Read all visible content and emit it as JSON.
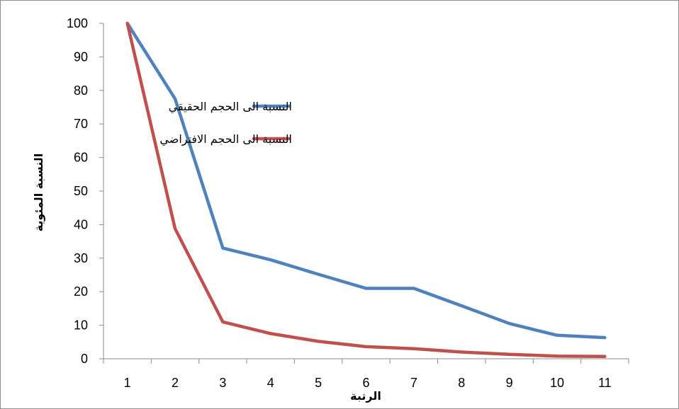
{
  "chart_data": {
    "type": "line",
    "x": [
      1,
      2,
      3,
      4,
      5,
      6,
      7,
      8,
      9,
      10,
      11
    ],
    "series": [
      {
        "name": "النسبة الى الحجم الحقيقي",
        "color": "#4f81bd",
        "values": [
          100,
          77.5,
          33,
          29.5,
          25.2,
          21,
          21,
          15.8,
          10.5,
          7,
          6.3
        ]
      },
      {
        "name": "النسبة الى الحجم الافتراضي",
        "color": "#c0504d",
        "values": [
          100,
          38.8,
          11,
          7.5,
          5.2,
          3.6,
          3,
          2,
          1.3,
          0.8,
          0.7
        ]
      }
    ],
    "xlabel": "الرتبة",
    "ylabel": "النسبة المئوية",
    "ylim": [
      0,
      100
    ],
    "yticks": [
      0,
      10,
      20,
      30,
      40,
      50,
      60,
      70,
      80,
      90,
      100
    ],
    "xticks": [
      "1",
      "2",
      "3",
      "4",
      "5",
      "6",
      "7",
      "8",
      "9",
      "10",
      "11"
    ],
    "grid": false,
    "legend_position": "upper-center"
  }
}
